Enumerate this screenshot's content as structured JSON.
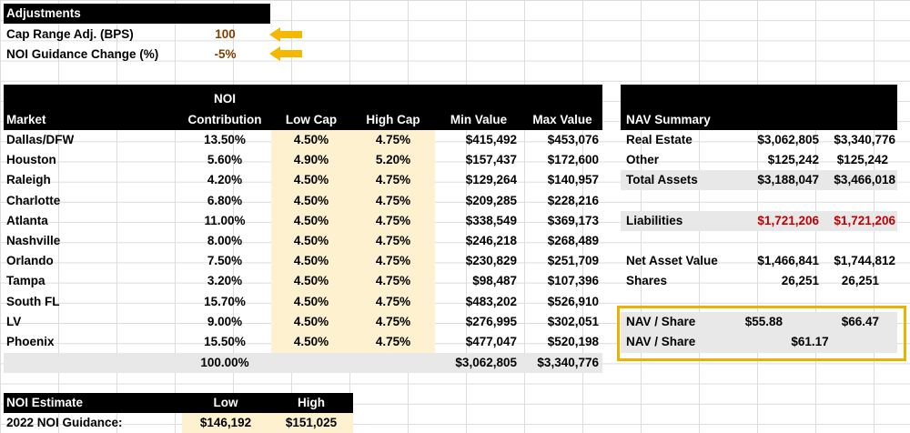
{
  "adjustments": {
    "title": "Adjustments",
    "rows": [
      {
        "label": "Cap Range Adj. (BPS)",
        "value": "100"
      },
      {
        "label": "NOI Guidance Change (%)",
        "value": "-5%"
      }
    ]
  },
  "market_table": {
    "headers": {
      "market": "Market",
      "noi_top": "NOI",
      "noi_bottom": "Contribution",
      "low_cap": "Low Cap",
      "high_cap": "High Cap",
      "min_value": "Min Value",
      "max_value": "Max Value"
    },
    "rows": [
      {
        "market": "Dallas/DFW",
        "noi": "13.50%",
        "low": "4.50%",
        "high": "4.75%",
        "min": "$415,492",
        "max": "$453,076"
      },
      {
        "market": "Houston",
        "noi": "5.60%",
        "low": "4.90%",
        "high": "5.20%",
        "min": "$157,437",
        "max": "$172,600"
      },
      {
        "market": "Raleigh",
        "noi": "4.20%",
        "low": "4.50%",
        "high": "4.75%",
        "min": "$129,264",
        "max": "$140,957"
      },
      {
        "market": "Charlotte",
        "noi": "6.80%",
        "low": "4.50%",
        "high": "4.75%",
        "min": "$209,285",
        "max": "$228,216"
      },
      {
        "market": "Atlanta",
        "noi": "11.00%",
        "low": "4.50%",
        "high": "4.75%",
        "min": "$338,549",
        "max": "$369,173"
      },
      {
        "market": "Nashville",
        "noi": "8.00%",
        "low": "4.50%",
        "high": "4.75%",
        "min": "$246,218",
        "max": "$268,489"
      },
      {
        "market": "Orlando",
        "noi": "7.50%",
        "low": "4.50%",
        "high": "4.75%",
        "min": "$230,829",
        "max": "$251,709"
      },
      {
        "market": "Tampa",
        "noi": "3.20%",
        "low": "4.50%",
        "high": "4.75%",
        "min": "$98,487",
        "max": "$107,396"
      },
      {
        "market": "South FL",
        "noi": "15.70%",
        "low": "4.50%",
        "high": "4.75%",
        "min": "$483,202",
        "max": "$526,910"
      },
      {
        "market": "LV",
        "noi": "9.00%",
        "low": "4.50%",
        "high": "4.75%",
        "min": "$276,995",
        "max": "$302,051"
      },
      {
        "market": "Phoenix",
        "noi": "15.50%",
        "low": "4.50%",
        "high": "4.75%",
        "min": "$477,047",
        "max": "$520,198"
      }
    ],
    "totals": {
      "noi": "100.00%",
      "min": "$3,062,805",
      "max": "$3,340,776"
    }
  },
  "nav_summary": {
    "title": "NAV Summary",
    "real_estate": {
      "label": "Real Estate",
      "low": "$3,062,805",
      "high": "$3,340,776"
    },
    "other": {
      "label": "Other",
      "low": "$125,242",
      "high": "$125,242"
    },
    "total_assets": {
      "label": "Total Assets",
      "low": "$3,188,047",
      "high": "$3,466,018"
    },
    "liabilities": {
      "label": "Liabilities",
      "low": "$1,721,206",
      "high": "$1,721,206"
    },
    "net_asset_value": {
      "label": "Net Asset Value",
      "low": "$1,466,841",
      "high": "$1,744,812"
    },
    "shares": {
      "label": "Shares",
      "low": "26,251",
      "high": "26,251"
    },
    "nav_share_range": {
      "label": "NAV / Share",
      "low": "$55.88",
      "high": "$66.47"
    },
    "nav_share_mid": {
      "label": "NAV / Share",
      "value": "$61.17"
    }
  },
  "noi_estimate": {
    "title": "NOI Estimate",
    "low_header": "Low",
    "high_header": "High",
    "row": {
      "label": "2022 NOI Guidance:",
      "low": "$146,192",
      "high": "$151,025"
    }
  },
  "colors": {
    "header_bg": "#000000",
    "cream": "#fdf1cf",
    "grey": "#e8e8e8",
    "red": "#c00000",
    "arrow": "#f5b800",
    "highlight_border": "#e8b400"
  }
}
